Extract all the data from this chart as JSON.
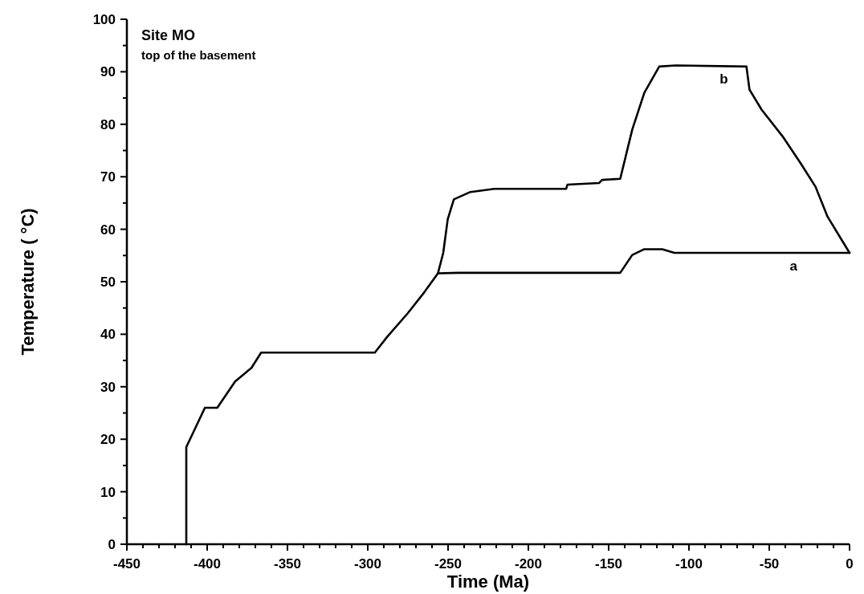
{
  "chart_data": {
    "type": "line",
    "title": "Site MO",
    "subtitle": "top of the basement",
    "xlabel": "Time (Ma)",
    "ylabel": "Temperature ( °C)",
    "series": [
      {
        "name": "a",
        "color": "#000000",
        "x": [
          -413,
          -413,
          -408.2,
          -401.4,
          -393.7,
          -382.6,
          -372.4,
          -366.4,
          -295.6,
          -287.9,
          -275.1,
          -264.8,
          -256.3,
          -243.6,
          -142.8,
          -135.3,
          -127.8,
          -116.6,
          -109.1,
          0
        ],
        "values": [
          0,
          18.5,
          21.6,
          26,
          26,
          31,
          33.6,
          36.5,
          36.5,
          39.5,
          44,
          48,
          51.6,
          51.7,
          51.7,
          55.1,
          56.2,
          56.2,
          55.5,
          55.5
        ]
      },
      {
        "name": "b",
        "color": "#000000",
        "x": [
          -256.3,
          -253,
          -250.2,
          -246.4,
          -236.1,
          -221.2,
          -176.5,
          -175.6,
          -156,
          -154.1,
          -142.8,
          -135.3,
          -127.8,
          -118.5,
          -108.2,
          -64.2,
          -62.3,
          -54.8,
          -41.7,
          -30.5,
          -21.2,
          -13.7,
          0
        ],
        "values": [
          51.6,
          55.5,
          61.9,
          65.7,
          67.1,
          67.7,
          67.7,
          68.5,
          68.8,
          69.4,
          69.6,
          79,
          86,
          91,
          91.2,
          91,
          86.6,
          82.8,
          77.7,
          72.6,
          68.1,
          62.4,
          55.5
        ]
      }
    ],
    "xlim": [
      -450,
      0
    ],
    "ylim": [
      0,
      100
    ],
    "xticks": [
      -450,
      {
        "value": -440,
        "label": null
      },
      {
        "value": -430,
        "label": null
      },
      {
        "value": -420,
        "label": null
      },
      {
        "value": -410,
        "label": null
      },
      -400,
      {
        "value": -390,
        "label": null
      },
      {
        "value": -380,
        "label": null
      },
      {
        "value": -370,
        "label": null
      },
      {
        "value": -360,
        "label": null
      },
      -350,
      {
        "value": -340,
        "label": null
      },
      {
        "value": -330,
        "label": null
      },
      {
        "value": -320,
        "label": null
      },
      {
        "value": -310,
        "label": null
      },
      -300,
      {
        "value": -290,
        "label": null
      },
      {
        "value": -280,
        "label": null
      },
      {
        "value": -270,
        "label": null
      },
      {
        "value": -260,
        "label": null
      },
      -250,
      {
        "value": -240,
        "label": null
      },
      {
        "value": -230,
        "label": null
      },
      {
        "value": -220,
        "label": null
      },
      {
        "value": -210,
        "label": null
      },
      -200,
      {
        "value": -190,
        "label": null
      },
      {
        "value": -180,
        "label": null
      },
      {
        "value": -170,
        "label": null
      },
      {
        "value": -160,
        "label": null
      },
      -150,
      {
        "value": -140,
        "label": null
      },
      {
        "value": -130,
        "label": null
      },
      {
        "value": -120,
        "label": null
      },
      {
        "value": -110,
        "label": null
      },
      -100,
      {
        "value": -90,
        "label": null
      },
      {
        "value": -80,
        "label": null
      },
      {
        "value": -70,
        "label": null
      },
      {
        "value": -60,
        "label": null
      },
      -50,
      {
        "value": -40,
        "label": null
      },
      {
        "value": -30,
        "label": null
      },
      {
        "value": -20,
        "label": null
      },
      {
        "value": -10,
        "label": null
      },
      0
    ],
    "yticks": [
      0,
      {
        "value": 5,
        "label": null
      },
      10,
      {
        "value": 15,
        "label": null
      },
      20,
      {
        "value": 25,
        "label": null
      },
      30,
      {
        "value": 35,
        "label": null
      },
      40,
      {
        "value": 45,
        "label": null
      },
      50,
      {
        "value": 55,
        "label": null
      },
      60,
      {
        "value": 65,
        "label": null
      },
      70,
      {
        "value": 75,
        "label": null
      },
      80,
      {
        "value": 85,
        "label": null
      },
      90,
      {
        "value": 95,
        "label": null
      },
      100
    ],
    "grid": false
  }
}
